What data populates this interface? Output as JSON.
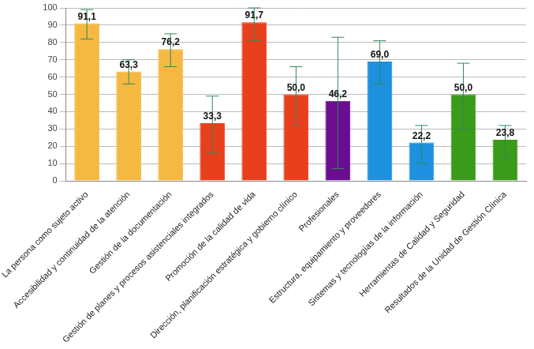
{
  "chart_data": {
    "type": "bar",
    "categories": [
      "La persona como sujeto activo",
      "Accesibilidad y continuidad de la atención",
      "Gestión de la documentación",
      "Gestión de planes y procesos asistenciales integrados",
      "Promoción de la calidad de vida",
      "Dirección, planificación estratégica y gobierno clínico",
      "Profesionales",
      "Estructura, equipamiento y proveedores",
      "Sistemas y tecnologías de la información",
      "Herramientas de Calidad y Seguridad",
      "Resultados de la Unidad de Gestión Clínica"
    ],
    "values": [
      91.1,
      63.3,
      76.2,
      33.3,
      91.7,
      50.0,
      46.2,
      69.0,
      22.2,
      50.0,
      23.8
    ],
    "value_labels": [
      "91,1",
      "63,3",
      "76,2",
      "33,3",
      "91,7",
      "50,0",
      "46,2",
      "69,0",
      "22,2",
      "50,0",
      "23,8"
    ],
    "error_low": [
      82,
      56,
      66,
      16,
      81,
      33,
      7,
      56,
      10,
      30,
      13
    ],
    "error_high": [
      99,
      70,
      85,
      49,
      100,
      66,
      83,
      81,
      32,
      68,
      32
    ],
    "colors": [
      "#f5b942",
      "#f5b942",
      "#f5b942",
      "#e8401c",
      "#e8401c",
      "#e8401c",
      "#6a0d91",
      "#1e90e0",
      "#1e90e0",
      "#3a9a1a",
      "#3a9a1a"
    ],
    "ylim": [
      0,
      100
    ],
    "yticks": [
      0,
      10,
      20,
      30,
      40,
      50,
      60,
      70,
      80,
      90,
      100
    ],
    "grid": true,
    "data_labels": true
  }
}
